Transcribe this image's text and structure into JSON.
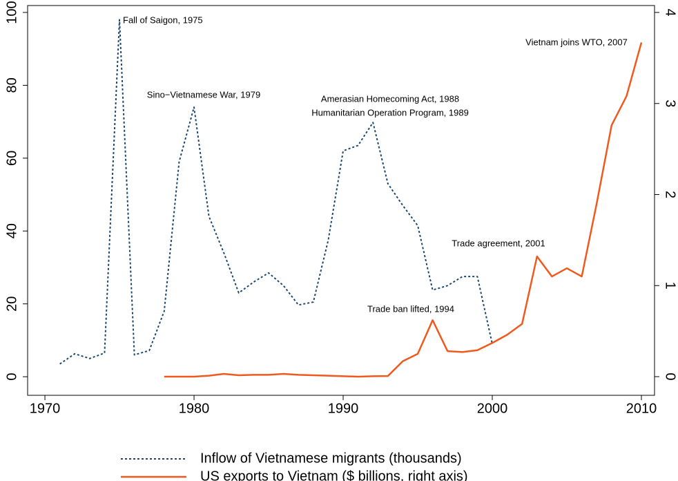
{
  "chart_data": {
    "type": "line",
    "x": [
      1971,
      1972,
      1973,
      1974,
      1975,
      1976,
      1977,
      1978,
      1979,
      1980,
      1981,
      1982,
      1983,
      1984,
      1985,
      1986,
      1987,
      1988,
      1989,
      1990,
      1991,
      1992,
      1993,
      1994,
      1995,
      1996,
      1997,
      1998,
      1999,
      2000,
      2001,
      2002,
      2003,
      2004,
      2005,
      2006,
      2007,
      2008,
      2009,
      2010
    ],
    "series": [
      {
        "name": "Inflow of Vietnamese migrants (thousands)",
        "color": "#1a476f",
        "dash": true,
        "values": [
          3.5,
          6.3,
          5.0,
          6.5,
          98,
          6,
          7.2,
          18,
          59,
          74,
          44,
          34,
          23,
          26,
          28.5,
          25,
          19.7,
          20.5,
          37.5,
          62,
          63.5,
          69.8,
          53,
          47,
          41.5,
          23.8,
          25,
          27.5,
          27.5,
          9,
          null,
          null,
          null,
          null,
          null,
          null,
          null,
          null,
          null,
          null
        ]
      },
      {
        "name": "US exports to Vietnam ($ billions, right axis)",
        "color": "#f0591e",
        "axis": "y2",
        "values": [
          null,
          null,
          null,
          null,
          null,
          null,
          null,
          0.0,
          0.0,
          0.0,
          0.01,
          0.03,
          0.015,
          0.02,
          0.02,
          0.03,
          0.02,
          0.015,
          0.01,
          0.005,
          0.0,
          0.005,
          0.007,
          0.17,
          0.25,
          0.62,
          0.28,
          0.27,
          0.29,
          0.37,
          0.46,
          0.58,
          1.32,
          1.1,
          1.19,
          1.1,
          1.9,
          2.76,
          3.08,
          3.67
        ]
      }
    ],
    "annotations": [
      "Fall of Saigon, 1975",
      "Sino−Vietnamese War, 1979",
      "Amerasian Homecoming Act, 1988",
      "Humanitarian Operation Program, 1989",
      "Trade ban lifted, 1994",
      "Trade agreement, 2001",
      "Vietnam joins WTO, 2007"
    ],
    "xlim": [
      1968.84,
      2010.88
    ],
    "xticks": [
      1970,
      1980,
      1990,
      2000,
      2010
    ],
    "ylim": [
      -5.1,
      101.9
    ],
    "yticks": [
      0,
      20,
      40,
      60,
      80,
      100
    ],
    "y2lim": [
      -0.205,
      4.076
    ],
    "y2ticks": [
      0,
      1,
      2,
      3,
      4
    ]
  }
}
